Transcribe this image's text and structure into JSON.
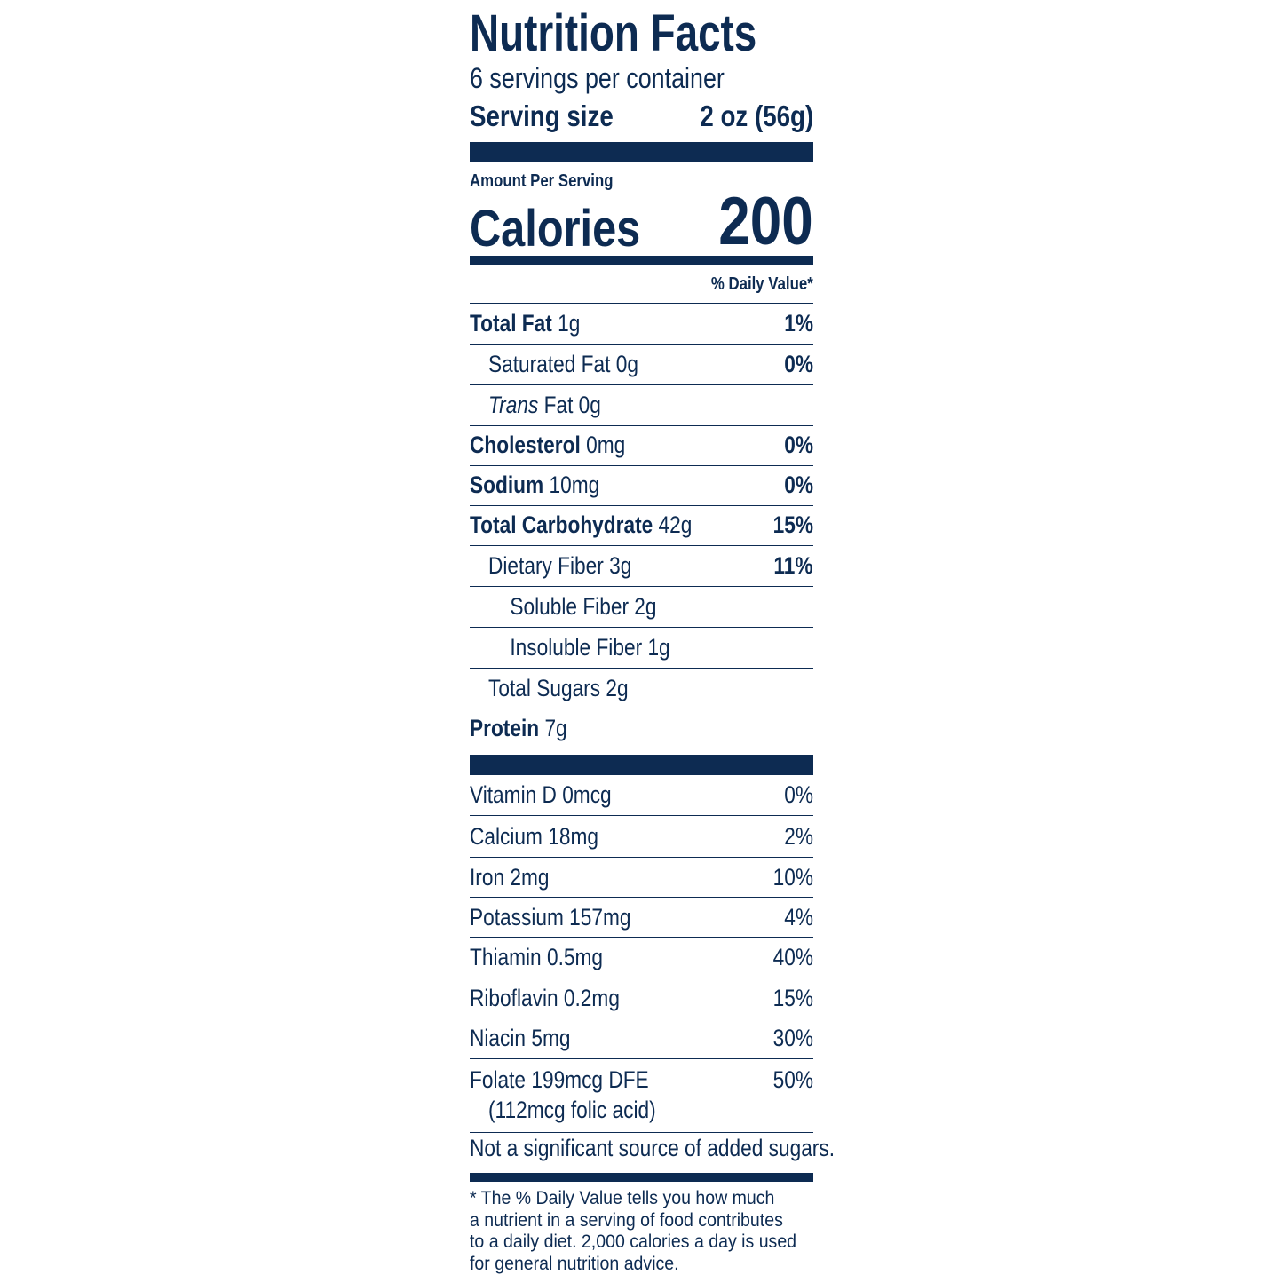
{
  "title": "Nutrition Facts",
  "servings": "6 servings per container",
  "serving_size": {
    "label": "Serving size",
    "value": "2 oz (56g)"
  },
  "amount_per_serving": "Amount Per Serving",
  "calories": {
    "label": "Calories",
    "value": "200"
  },
  "dv_header": "% Daily Value*",
  "nutrients": [
    {
      "name": "Total Fat",
      "amount": "1g",
      "dv": "1%"
    },
    {
      "name": "Saturated Fat",
      "amount": "0g",
      "dv": "0%"
    },
    {
      "name": "Trans",
      "amount": "Fat 0g"
    },
    {
      "name": "Cholesterol",
      "amount": "0mg",
      "dv": "0%"
    },
    {
      "name": "Sodium",
      "amount": "10mg",
      "dv": "0%"
    },
    {
      "name": "Total Carbohydrate",
      "amount": "42g",
      "dv": "15%"
    },
    {
      "name": "Dietary Fiber",
      "amount": "3g",
      "dv": "11%"
    },
    {
      "name": "Soluble Fiber",
      "amount": "2g"
    },
    {
      "name": "Insoluble Fiber",
      "amount": "1g"
    },
    {
      "name": "Total Sugars",
      "amount": "2g"
    },
    {
      "name": "Protein",
      "amount": "7g"
    }
  ],
  "vitamins": [
    {
      "name": "Vitamin D 0mcg",
      "dv": "0%"
    },
    {
      "name": "Calcium 18mg",
      "dv": "2%"
    },
    {
      "name": "Iron 2mg",
      "dv": "10%"
    },
    {
      "name": "Potassium 157mg",
      "dv": "4%"
    },
    {
      "name": "Thiamin 0.5mg",
      "dv": "40%"
    },
    {
      "name": "Riboflavin 0.2mg",
      "dv": "15%"
    },
    {
      "name": "Niacin 5mg",
      "dv": "30%"
    },
    {
      "name": "Folate 199mcg DFE",
      "note": "(112mcg folic acid)",
      "dv": "50%"
    }
  ],
  "added_sugars_note": "Not a significant source of added sugars.",
  "footnote": [
    "* The % Daily Value tells you how much",
    "a nutrient in a serving of food contributes",
    "to a daily diet. 2,000 calories a day is used",
    "for general nutrition advice."
  ]
}
